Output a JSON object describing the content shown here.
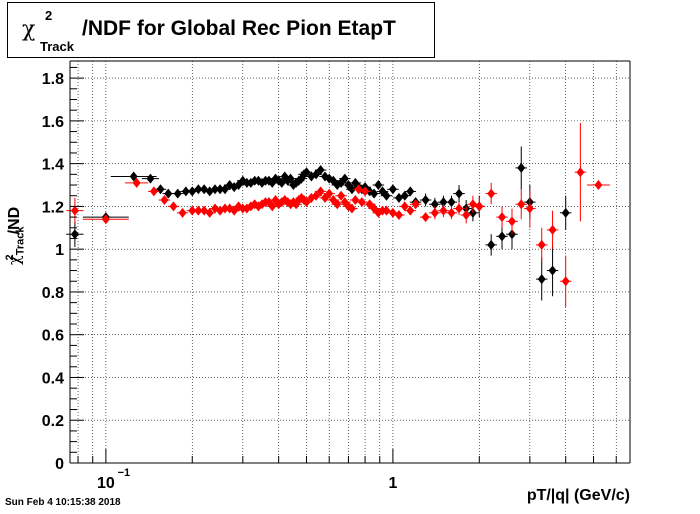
{
  "title": {
    "chi": "χ",
    "sup": "2",
    "sub": "Track",
    "main": "/NDF for Global Rec Pion EtapT"
  },
  "ylabel": {
    "chi": "χ",
    "sup": "2",
    "sub": "Track",
    "main": "/ND"
  },
  "xlabel": "pT/|q| (GeV/c)",
  "timestamp": "Sun Feb  4 10:15:38 2018",
  "colors": {
    "black_series": "#000000",
    "red_series": "#ff0000",
    "grid": "#000000"
  },
  "chart_data": {
    "type": "scatter",
    "x_scale": "log",
    "xlim": [
      0.075,
      6.7
    ],
    "ylim": [
      0,
      1.88
    ],
    "grid": true,
    "x_tick_labels": [
      {
        "value": 0.1,
        "base": "10",
        "exp": "−1"
      },
      {
        "value": 1,
        "base": "1",
        "exp": ""
      }
    ],
    "y_tick_labels": [
      "0",
      "0.2",
      "0.4",
      "0.6",
      "0.8",
      "1",
      "1.2",
      "1.4",
      "1.6",
      "1.8"
    ],
    "y_tick_values": [
      0,
      0.2,
      0.4,
      0.6,
      0.8,
      1.0,
      1.2,
      1.4,
      1.6,
      1.8
    ],
    "series": [
      {
        "color": "black",
        "x": [
          0.078,
          0.1,
          0.125,
          0.143,
          0.155,
          0.165,
          0.178,
          0.19,
          0.2,
          0.21,
          0.22,
          0.23,
          0.24,
          0.25,
          0.26,
          0.27,
          0.28,
          0.29,
          0.3,
          0.31,
          0.32,
          0.33,
          0.34,
          0.35,
          0.36,
          0.37,
          0.38,
          0.39,
          0.4,
          0.41,
          0.42,
          0.43,
          0.44,
          0.45,
          0.46,
          0.47,
          0.48,
          0.49,
          0.5,
          0.52,
          0.54,
          0.56,
          0.58,
          0.6,
          0.62,
          0.64,
          0.66,
          0.68,
          0.7,
          0.72,
          0.74,
          0.76,
          0.78,
          0.8,
          0.83,
          0.86,
          0.89,
          0.92,
          0.95,
          1.0,
          1.05,
          1.1,
          1.15,
          1.2,
          1.3,
          1.4,
          1.5,
          1.6,
          1.7,
          1.8,
          1.9,
          2.0,
          2.2,
          2.4,
          2.6,
          2.8,
          3.0,
          3.3,
          3.6,
          4.0
        ],
        "y": [
          1.07,
          1.15,
          1.34,
          1.33,
          1.28,
          1.26,
          1.26,
          1.27,
          1.27,
          1.28,
          1.28,
          1.27,
          1.28,
          1.28,
          1.28,
          1.3,
          1.29,
          1.3,
          1.32,
          1.31,
          1.31,
          1.32,
          1.32,
          1.31,
          1.32,
          1.32,
          1.31,
          1.33,
          1.32,
          1.31,
          1.34,
          1.32,
          1.33,
          1.3,
          1.31,
          1.32,
          1.33,
          1.35,
          1.36,
          1.34,
          1.35,
          1.37,
          1.34,
          1.33,
          1.32,
          1.3,
          1.31,
          1.33,
          1.3,
          1.28,
          1.31,
          1.29,
          1.28,
          1.29,
          1.27,
          1.26,
          1.3,
          1.27,
          1.25,
          1.28,
          1.24,
          1.25,
          1.27,
          1.22,
          1.23,
          1.21,
          1.22,
          1.22,
          1.26,
          1.19,
          1.17,
          1.2,
          1.02,
          1.06,
          1.07,
          1.38,
          1.22,
          0.86,
          0.9,
          1.17
        ],
        "yerr": [
          0.06,
          0.02,
          0.01,
          0.01,
          0.01,
          0.01,
          0.01,
          0.01,
          0.01,
          0.01,
          0.01,
          0.01,
          0.01,
          0.01,
          0.01,
          0.01,
          0.01,
          0.01,
          0.01,
          0.01,
          0.01,
          0.01,
          0.01,
          0.01,
          0.01,
          0.01,
          0.01,
          0.01,
          0.01,
          0.01,
          0.01,
          0.01,
          0.01,
          0.01,
          0.01,
          0.01,
          0.01,
          0.01,
          0.01,
          0.01,
          0.01,
          0.01,
          0.01,
          0.01,
          0.01,
          0.01,
          0.01,
          0.01,
          0.01,
          0.01,
          0.01,
          0.01,
          0.01,
          0.01,
          0.01,
          0.01,
          0.02,
          0.02,
          0.02,
          0.02,
          0.02,
          0.02,
          0.02,
          0.02,
          0.03,
          0.03,
          0.03,
          0.03,
          0.04,
          0.04,
          0.04,
          0.05,
          0.05,
          0.06,
          0.07,
          0.1,
          0.08,
          0.1,
          0.12,
          0.08
        ],
        "xerr_log": [
          0.03,
          0.08,
          0.08,
          0.03,
          0.02,
          0.02,
          0.02,
          0.02,
          0.02,
          0.02,
          0.02,
          0.02,
          0.02,
          0.02,
          0.02,
          0.02,
          0.02,
          0.02,
          0.02,
          0.02,
          0.02,
          0.02,
          0.02,
          0.02,
          0.02,
          0.02,
          0.02,
          0.02,
          0.02,
          0.02,
          0.02,
          0.02,
          0.02,
          0.02,
          0.02,
          0.02,
          0.02,
          0.02,
          0.02,
          0.02,
          0.02,
          0.02,
          0.02,
          0.02,
          0.02,
          0.02,
          0.02,
          0.02,
          0.02,
          0.02,
          0.02,
          0.02,
          0.02,
          0.02,
          0.02,
          0.02,
          0.02,
          0.02,
          0.02,
          0.02,
          0.02,
          0.02,
          0.02,
          0.02,
          0.02,
          0.02,
          0.02,
          0.02,
          0.02,
          0.02,
          0.02,
          0.02,
          0.02,
          0.02,
          0.02,
          0.02,
          0.02,
          0.02,
          0.02,
          0.02
        ]
      },
      {
        "color": "red",
        "x": [
          0.078,
          0.1,
          0.128,
          0.147,
          0.16,
          0.172,
          0.185,
          0.2,
          0.21,
          0.22,
          0.23,
          0.24,
          0.25,
          0.26,
          0.27,
          0.28,
          0.29,
          0.3,
          0.31,
          0.32,
          0.33,
          0.34,
          0.35,
          0.36,
          0.37,
          0.38,
          0.39,
          0.4,
          0.41,
          0.42,
          0.43,
          0.44,
          0.45,
          0.46,
          0.47,
          0.48,
          0.49,
          0.5,
          0.52,
          0.54,
          0.56,
          0.58,
          0.6,
          0.62,
          0.64,
          0.66,
          0.68,
          0.7,
          0.72,
          0.74,
          0.76,
          0.78,
          0.8,
          0.83,
          0.86,
          0.89,
          0.92,
          0.95,
          1.0,
          1.05,
          1.1,
          1.15,
          1.2,
          1.3,
          1.4,
          1.5,
          1.6,
          1.7,
          1.8,
          1.9,
          2.0,
          2.2,
          2.4,
          2.6,
          2.8,
          3.0,
          3.3,
          3.6,
          4.0,
          4.5,
          5.2
        ],
        "y": [
          1.18,
          1.14,
          1.31,
          1.27,
          1.23,
          1.2,
          1.17,
          1.18,
          1.18,
          1.18,
          1.17,
          1.19,
          1.18,
          1.19,
          1.19,
          1.18,
          1.2,
          1.19,
          1.19,
          1.2,
          1.21,
          1.2,
          1.21,
          1.22,
          1.22,
          1.2,
          1.23,
          1.21,
          1.22,
          1.23,
          1.22,
          1.21,
          1.22,
          1.21,
          1.23,
          1.24,
          1.23,
          1.22,
          1.24,
          1.25,
          1.27,
          1.24,
          1.26,
          1.23,
          1.21,
          1.25,
          1.22,
          1.2,
          1.19,
          1.23,
          1.28,
          1.22,
          1.27,
          1.21,
          1.19,
          1.17,
          1.18,
          1.18,
          1.17,
          1.16,
          1.2,
          1.18,
          1.21,
          1.15,
          1.17,
          1.18,
          1.17,
          1.19,
          1.16,
          1.21,
          1.2,
          1.26,
          1.15,
          1.13,
          1.21,
          1.19,
          1.02,
          1.09,
          0.85,
          1.36,
          1.3
        ],
        "yerr": [
          0.06,
          0.02,
          0.01,
          0.01,
          0.01,
          0.01,
          0.01,
          0.01,
          0.01,
          0.01,
          0.01,
          0.01,
          0.01,
          0.01,
          0.01,
          0.01,
          0.01,
          0.01,
          0.01,
          0.01,
          0.01,
          0.01,
          0.01,
          0.01,
          0.01,
          0.01,
          0.01,
          0.01,
          0.01,
          0.01,
          0.01,
          0.01,
          0.01,
          0.01,
          0.01,
          0.01,
          0.01,
          0.01,
          0.01,
          0.01,
          0.01,
          0.01,
          0.01,
          0.01,
          0.01,
          0.01,
          0.01,
          0.01,
          0.01,
          0.01,
          0.01,
          0.01,
          0.01,
          0.01,
          0.01,
          0.01,
          0.02,
          0.02,
          0.02,
          0.02,
          0.02,
          0.02,
          0.02,
          0.02,
          0.03,
          0.03,
          0.03,
          0.03,
          0.04,
          0.04,
          0.04,
          0.05,
          0.05,
          0.06,
          0.07,
          0.09,
          0.08,
          0.09,
          0.12,
          0.23,
          0.02
        ],
        "xerr_log": [
          0.03,
          0.08,
          0.04,
          0.02,
          0.02,
          0.02,
          0.02,
          0.02,
          0.02,
          0.02,
          0.02,
          0.02,
          0.02,
          0.02,
          0.02,
          0.02,
          0.02,
          0.02,
          0.02,
          0.02,
          0.02,
          0.02,
          0.02,
          0.02,
          0.02,
          0.02,
          0.02,
          0.02,
          0.02,
          0.02,
          0.02,
          0.02,
          0.02,
          0.02,
          0.02,
          0.02,
          0.02,
          0.02,
          0.02,
          0.02,
          0.02,
          0.02,
          0.02,
          0.02,
          0.02,
          0.02,
          0.02,
          0.02,
          0.02,
          0.02,
          0.02,
          0.02,
          0.02,
          0.02,
          0.02,
          0.02,
          0.02,
          0.02,
          0.02,
          0.02,
          0.02,
          0.02,
          0.02,
          0.02,
          0.02,
          0.02,
          0.02,
          0.02,
          0.02,
          0.02,
          0.02,
          0.02,
          0.02,
          0.02,
          0.02,
          0.02,
          0.02,
          0.02,
          0.02,
          0.02,
          0.04
        ]
      }
    ]
  }
}
